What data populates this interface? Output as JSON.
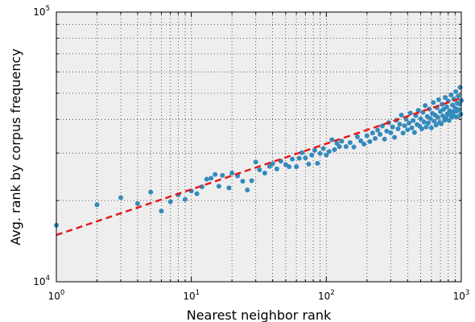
{
  "chart_data": {
    "type": "scatter",
    "title": "",
    "xlabel": "Nearest neighbor rank",
    "ylabel": "Avg. rank by corpus frequency",
    "x_scale": "log",
    "y_scale": "log",
    "xlim": [
      1,
      1000
    ],
    "ylim": [
      10000,
      100000
    ],
    "x_tick_labels": [
      {
        "value": 1,
        "base": "10",
        "exp": "0"
      },
      {
        "value": 10,
        "base": "10",
        "exp": "1"
      },
      {
        "value": 100,
        "base": "10",
        "exp": "2"
      },
      {
        "value": 1000,
        "base": "10",
        "exp": "3"
      }
    ],
    "y_tick_labels": [
      {
        "value": 10000,
        "base": "10",
        "exp": "4"
      },
      {
        "value": 100000,
        "base": "10",
        "exp": "5"
      }
    ],
    "grid": true,
    "grid_style": "dotted",
    "background_color": "#eeeeee",
    "series": [
      {
        "type": "scatter",
        "color": "#348abd",
        "points": [
          [
            1,
            16200
          ],
          [
            2,
            19300
          ],
          [
            3,
            20500
          ],
          [
            4,
            19500
          ],
          [
            5,
            21500
          ],
          [
            6,
            18300
          ],
          [
            7,
            19800
          ],
          [
            8,
            21000
          ],
          [
            9,
            20200
          ],
          [
            10,
            21700
          ],
          [
            11,
            21200
          ],
          [
            12,
            22500
          ],
          [
            13,
            24000
          ],
          [
            14,
            24200
          ],
          [
            15,
            25000
          ],
          [
            16,
            22600
          ],
          [
            17,
            24800
          ],
          [
            19,
            22300
          ],
          [
            20,
            25300
          ],
          [
            22,
            24700
          ],
          [
            24,
            23600
          ],
          [
            26,
            21900
          ],
          [
            28,
            23700
          ],
          [
            30,
            27800
          ],
          [
            32,
            26000
          ],
          [
            35,
            25300
          ],
          [
            38,
            26800
          ],
          [
            40,
            27400
          ],
          [
            43,
            26200
          ],
          [
            46,
            28000
          ],
          [
            50,
            27200
          ],
          [
            53,
            26700
          ],
          [
            56,
            28500
          ],
          [
            60,
            26700
          ],
          [
            63,
            28700
          ],
          [
            66,
            30100
          ],
          [
            70,
            28800
          ],
          [
            74,
            27300
          ],
          [
            78,
            29500
          ],
          [
            82,
            30700
          ],
          [
            86,
            27500
          ],
          [
            90,
            29900
          ],
          [
            95,
            31200
          ],
          [
            100,
            29500
          ],
          [
            105,
            30400
          ],
          [
            110,
            33600
          ],
          [
            115,
            30900
          ],
          [
            120,
            32600
          ],
          [
            125,
            31700
          ],
          [
            130,
            33200
          ],
          [
            140,
            31700
          ],
          [
            150,
            32800
          ],
          [
            160,
            31600
          ],
          [
            170,
            34500
          ],
          [
            180,
            33300
          ],
          [
            190,
            32400
          ],
          [
            200,
            34800
          ],
          [
            210,
            33100
          ],
          [
            220,
            35600
          ],
          [
            230,
            34000
          ],
          [
            240,
            36500
          ],
          [
            250,
            35200
          ],
          [
            260,
            37800
          ],
          [
            270,
            33800
          ],
          [
            280,
            36200
          ],
          [
            290,
            38900
          ],
          [
            300,
            35700
          ],
          [
            310,
            37500
          ],
          [
            320,
            34300
          ],
          [
            330,
            39700
          ],
          [
            340,
            36900
          ],
          [
            350,
            38400
          ],
          [
            360,
            41500
          ],
          [
            370,
            35600
          ],
          [
            380,
            37900
          ],
          [
            390,
            40100
          ],
          [
            400,
            36600
          ],
          [
            410,
            38800
          ],
          [
            420,
            42200
          ],
          [
            430,
            37200
          ],
          [
            440,
            39600
          ],
          [
            450,
            35800
          ],
          [
            460,
            41300
          ],
          [
            470,
            38300
          ],
          [
            480,
            43200
          ],
          [
            490,
            37800
          ],
          [
            500,
            40200
          ],
          [
            510,
            36900
          ],
          [
            520,
            42500
          ],
          [
            530,
            39100
          ],
          [
            540,
            45000
          ],
          [
            550,
            37500
          ],
          [
            560,
            41000
          ],
          [
            570,
            38800
          ],
          [
            580,
            43700
          ],
          [
            590,
            40300
          ],
          [
            600,
            37200
          ],
          [
            610,
            42100
          ],
          [
            620,
            46200
          ],
          [
            630,
            39400
          ],
          [
            640,
            41500
          ],
          [
            650,
            38100
          ],
          [
            660,
            44200
          ],
          [
            670,
            40700
          ],
          [
            680,
            47300
          ],
          [
            690,
            39000
          ],
          [
            700,
            42800
          ],
          [
            710,
            38500
          ],
          [
            720,
            45500
          ],
          [
            730,
            41200
          ],
          [
            740,
            43600
          ],
          [
            750,
            39700
          ],
          [
            760,
            48200
          ],
          [
            770,
            40600
          ],
          [
            780,
            44500
          ],
          [
            790,
            42000
          ],
          [
            800,
            46800
          ],
          [
            810,
            39600
          ],
          [
            820,
            43100
          ],
          [
            830,
            41400
          ],
          [
            840,
            49300
          ],
          [
            850,
            40800
          ],
          [
            860,
            45200
          ],
          [
            870,
            42600
          ],
          [
            880,
            47600
          ],
          [
            890,
            41100
          ],
          [
            900,
            44100
          ],
          [
            910,
            50700
          ],
          [
            920,
            42900
          ],
          [
            930,
            46000
          ],
          [
            940,
            40900
          ],
          [
            950,
            48800
          ],
          [
            960,
            43500
          ],
          [
            970,
            45600
          ],
          [
            980,
            52600
          ],
          [
            990,
            41800
          ],
          [
            1000,
            47000
          ]
        ]
      },
      {
        "type": "line",
        "style": "dashed",
        "color": "#e41a1c",
        "points": [
          [
            1,
            14900
          ],
          [
            1000,
            48000
          ]
        ]
      }
    ]
  }
}
